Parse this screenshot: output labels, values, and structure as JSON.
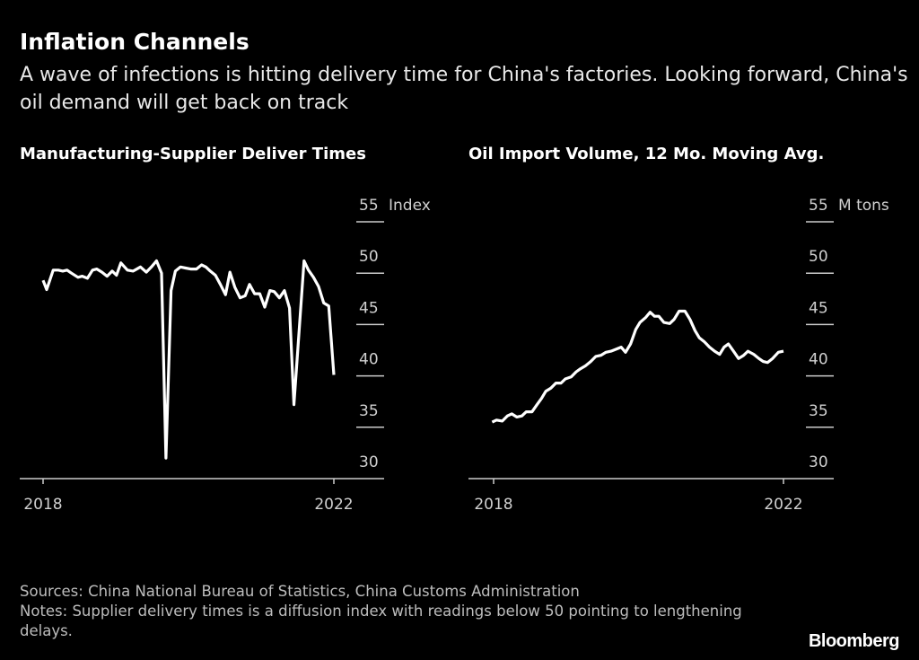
{
  "header": {
    "title": "Inflation Channels",
    "subtitle": "A wave of infections is hitting delivery time for China's factories. Looking forward, China's oil demand will get back on track"
  },
  "footer": {
    "sources": "Sources: China National Bureau of Statistics, China Customs Administration",
    "notes": "Notes: Supplier delivery times is a diffusion index with readings below 50 pointing to lengthening delays.",
    "logo": "Bloomberg"
  },
  "colors": {
    "background": "#000000",
    "line": "#ffffff",
    "grid": "#cccccc"
  },
  "chart_data": [
    {
      "type": "line",
      "title": "Manufacturing-Supplier Deliver Times",
      "unit_label": "Index",
      "ylim": [
        30,
        55
      ],
      "yticks": [
        "55",
        "50",
        "45",
        "40",
        "35",
        "30"
      ],
      "xticks": [
        "2018",
        "2022"
      ],
      "xlim": [
        2018,
        2022
      ],
      "grid": true,
      "x": [
        2018.0,
        2018.05,
        2018.14,
        2018.21,
        2018.27,
        2018.33,
        2018.39,
        2018.48,
        2018.54,
        2018.61,
        2018.68,
        2018.74,
        2018.81,
        2018.88,
        2018.95,
        2019.01,
        2019.07,
        2019.16,
        2019.24,
        2019.34,
        2019.42,
        2019.49,
        2019.56,
        2019.63,
        2019.69,
        2019.76,
        2019.82,
        2019.89,
        2019.96,
        2020.03,
        2020.11,
        2020.18,
        2020.24,
        2020.3,
        2020.37,
        2020.44,
        2020.51,
        2020.57,
        2020.64,
        2020.71,
        2020.78,
        2020.84,
        2020.91,
        2020.98,
        2021.05,
        2021.12,
        2021.18,
        2021.25,
        2021.32,
        2021.39,
        2021.45,
        2021.59,
        2021.65,
        2021.72,
        2021.79,
        2021.86,
        2021.93,
        2022.0
      ],
      "values": [
        49.3,
        48.4,
        50.3,
        50.3,
        50.2,
        50.3,
        50.0,
        49.6,
        49.7,
        49.5,
        50.3,
        50.4,
        50.1,
        49.7,
        50.2,
        49.8,
        51.0,
        50.3,
        50.2,
        50.6,
        50.1,
        50.6,
        51.2,
        50.0,
        32.0,
        48.3,
        50.2,
        50.6,
        50.5,
        50.4,
        50.4,
        50.8,
        50.6,
        50.2,
        49.8,
        48.9,
        47.9,
        50.1,
        48.6,
        47.6,
        47.8,
        48.9,
        48.0,
        48.0,
        46.7,
        48.3,
        48.2,
        47.6,
        48.3,
        46.6,
        37.2,
        51.2,
        50.3,
        49.6,
        48.7,
        47.1,
        46.8,
        40.1
      ]
    },
    {
      "type": "line",
      "title": "Oil Import Volume, 12 Mo. Moving Avg.",
      "unit_label": "M tons",
      "ylim": [
        30,
        55
      ],
      "yticks": [
        "55",
        "50",
        "45",
        "40",
        "35",
        "30"
      ],
      "xticks": [
        "2018",
        "2022"
      ],
      "xlim": [
        2018,
        2022
      ],
      "grid": true,
      "x": [
        2017.98,
        2018.04,
        2018.12,
        2018.19,
        2018.25,
        2018.32,
        2018.39,
        2018.45,
        2018.53,
        2018.6,
        2018.66,
        2018.72,
        2018.79,
        2018.86,
        2018.93,
        2018.99,
        2019.07,
        2019.14,
        2019.2,
        2019.27,
        2019.34,
        2019.41,
        2019.48,
        2019.55,
        2019.62,
        2019.69,
        2019.76,
        2019.82,
        2019.89,
        2019.96,
        2020.02,
        2020.1,
        2020.16,
        2020.22,
        2020.28,
        2020.35,
        2020.43,
        2020.49,
        2020.56,
        2020.64,
        2020.71,
        2020.78,
        2020.84,
        2020.91,
        2020.98,
        2021.05,
        2021.12,
        2021.18,
        2021.24,
        2021.31,
        2021.38,
        2021.45,
        2021.51,
        2021.59,
        2021.66,
        2021.72,
        2021.78,
        2021.85,
        2021.93,
        2022.0
      ],
      "values": [
        35.5,
        35.7,
        35.6,
        36.1,
        36.3,
        36.0,
        36.1,
        36.5,
        36.5,
        37.2,
        37.8,
        38.5,
        38.8,
        39.3,
        39.3,
        39.7,
        39.9,
        40.4,
        40.7,
        41.0,
        41.4,
        41.9,
        42.0,
        42.3,
        42.4,
        42.6,
        42.8,
        42.3,
        43.1,
        44.5,
        45.2,
        45.7,
        46.2,
        45.8,
        45.8,
        45.2,
        45.1,
        45.5,
        46.3,
        46.3,
        45.5,
        44.4,
        43.7,
        43.3,
        42.8,
        42.4,
        42.1,
        42.8,
        43.1,
        42.4,
        41.7,
        42.0,
        42.4,
        42.1,
        41.7,
        41.4,
        41.3,
        41.7,
        42.3,
        42.4
      ]
    }
  ]
}
